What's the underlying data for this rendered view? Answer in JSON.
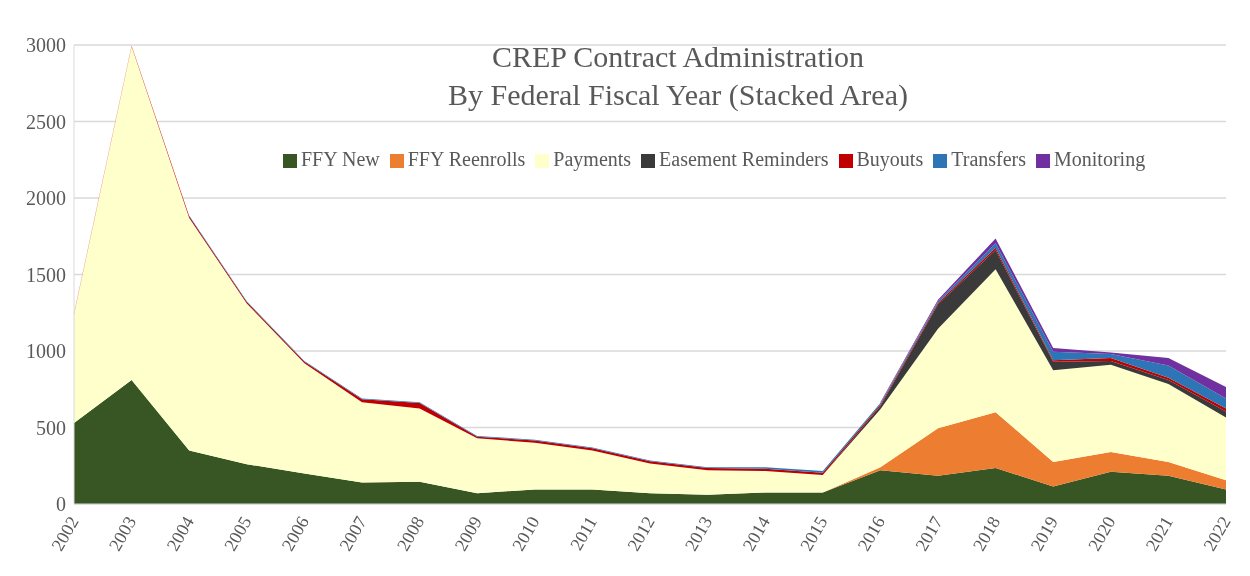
{
  "chart_data": {
    "type": "area",
    "stacked": true,
    "title": "CREP Contract Administration\nBy Federal Fiscal Year (Stacked Area)",
    "categories": [
      "2002",
      "2003",
      "2004",
      "2005",
      "2006",
      "2007",
      "2008",
      "2009",
      "2010",
      "2011",
      "2012",
      "2013",
      "2014",
      "2015",
      "2016",
      "2017",
      "2018",
      "2019",
      "2020",
      "2021",
      "2022"
    ],
    "series": [
      {
        "name": "FFY New",
        "color": "#375623",
        "values": [
          530,
          810,
          350,
          260,
          200,
          140,
          145,
          70,
          95,
          95,
          70,
          60,
          75,
          75,
          220,
          185,
          235,
          115,
          210,
          185,
          95
        ]
      },
      {
        "name": "FFY Reenrolls",
        "color": "#ed7d31",
        "values": [
          null,
          null,
          null,
          null,
          null,
          null,
          null,
          null,
          null,
          null,
          null,
          null,
          null,
          0,
          20,
          310,
          365,
          160,
          130,
          90,
          60
        ]
      },
      {
        "name": "Payments",
        "color": "#ffffcc",
        "values": [
          710,
          2180,
          1520,
          1050,
          720,
          525,
          480,
          360,
          305,
          255,
          195,
          160,
          140,
          115,
          380,
          650,
          935,
          600,
          570,
          510,
          410
        ]
      },
      {
        "name": "Easement Reminders",
        "color": "#3a3a3a",
        "values": [
          null,
          null,
          null,
          null,
          null,
          null,
          null,
          null,
          null,
          null,
          null,
          null,
          null,
          0,
          20,
          160,
          125,
          55,
          25,
          25,
          40
        ]
      },
      {
        "name": "Buyouts",
        "color": "#c00000",
        "values": [
          5,
          5,
          10,
          10,
          10,
          20,
          35,
          10,
          15,
          15,
          15,
          15,
          15,
          15,
          10,
          10,
          15,
          10,
          20,
          15,
          20
        ]
      },
      {
        "name": "Transfers",
        "color": "#2e75b6",
        "values": [
          null,
          null,
          5,
          5,
          5,
          5,
          5,
          5,
          5,
          5,
          5,
          5,
          10,
          10,
          10,
          10,
          30,
          55,
          25,
          80,
          65
        ]
      },
      {
        "name": "Monitoring",
        "color": "#7030a0",
        "values": [
          null,
          null,
          null,
          null,
          null,
          null,
          null,
          null,
          null,
          null,
          null,
          null,
          null,
          null,
          5,
          10,
          30,
          25,
          10,
          50,
          75
        ]
      }
    ],
    "ylim": [
      0,
      3000
    ],
    "yticks": [
      0,
      500,
      1000,
      1500,
      2000,
      2500,
      3000
    ],
    "grid": "y",
    "legend": "top"
  }
}
